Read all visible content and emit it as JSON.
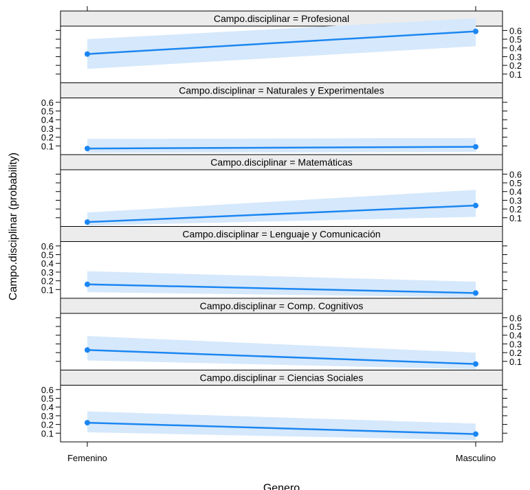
{
  "chart_data": {
    "type": "line",
    "xlabel": "Genero",
    "ylabel": "Campo.disciplinar (probability)",
    "categories": [
      "Femenino",
      "Masculino"
    ],
    "ylim": [
      0,
      0.65
    ],
    "yticks": [
      "0.1",
      "0.2",
      "0.3",
      "0.4",
      "0.5",
      "0.6"
    ],
    "colors": {
      "line": "#1a86f2",
      "band": "#d6e8fb",
      "strip": "#ececec",
      "frame": "#000000"
    },
    "panels": [
      {
        "strip": "Campo.disciplinar = Profesional",
        "values": [
          0.33,
          0.59
        ],
        "lower": [
          0.16,
          0.42
        ],
        "upper": [
          0.5,
          0.74
        ],
        "ticks_side": "right"
      },
      {
        "strip": "Campo.disciplinar = Naturales y Experimentales",
        "values": [
          0.07,
          0.09
        ],
        "lower": [
          0.02,
          0.03
        ],
        "upper": [
          0.18,
          0.19
        ],
        "ticks_side": "left"
      },
      {
        "strip": "Campo.disciplinar = Matemáticas",
        "values": [
          0.05,
          0.24
        ],
        "lower": [
          0.01,
          0.11
        ],
        "upper": [
          0.16,
          0.42
        ],
        "ticks_side": "right"
      },
      {
        "strip": "Campo.disciplinar = Lenguaje y Comunicación",
        "values": [
          0.16,
          0.06
        ],
        "lower": [
          0.07,
          0.01
        ],
        "upper": [
          0.31,
          0.19
        ],
        "ticks_side": "left"
      },
      {
        "strip": "Campo.disciplinar = Comp. Cognitivos",
        "values": [
          0.23,
          0.07
        ],
        "lower": [
          0.11,
          0.01
        ],
        "upper": [
          0.39,
          0.2
        ],
        "ticks_side": "right"
      },
      {
        "strip": "Campo.disciplinar = Ciencias Sociales",
        "values": [
          0.22,
          0.09
        ],
        "lower": [
          0.11,
          0.02
        ],
        "upper": [
          0.35,
          0.21
        ],
        "ticks_side": "left"
      }
    ]
  }
}
